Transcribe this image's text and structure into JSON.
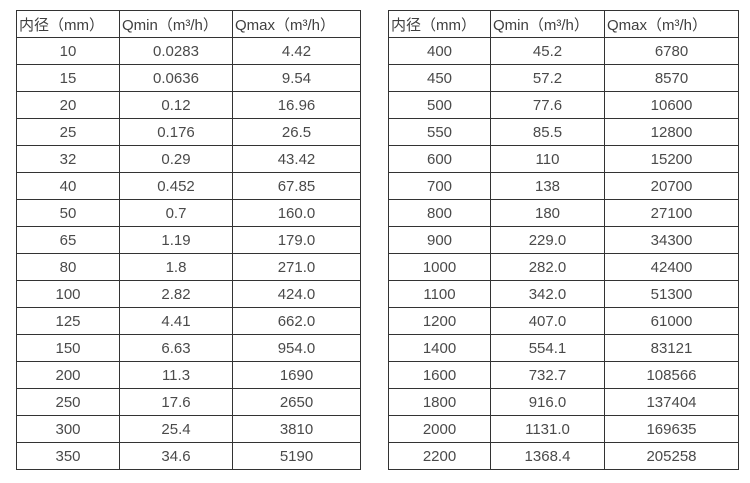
{
  "page": {
    "background": "#ffffff",
    "border_color": "#333333",
    "text_color": "#4a4a4a"
  },
  "tables": [
    {
      "name": "flow-spec-table-small-diameters",
      "headers": [
        "内径（mm）",
        "Qmin（m³/h）",
        "Qmax（m³/h）"
      ],
      "rows": [
        [
          "10",
          "0.0283",
          "4.42"
        ],
        [
          "15",
          "0.0636",
          "9.54"
        ],
        [
          "20",
          "0.12",
          "16.96"
        ],
        [
          "25",
          "0.176",
          "26.5"
        ],
        [
          "32",
          "0.29",
          "43.42"
        ],
        [
          "40",
          "0.452",
          "67.85"
        ],
        [
          "50",
          "0.7",
          "160.0"
        ],
        [
          "65",
          "1.19",
          "179.0"
        ],
        [
          "80",
          "1.8",
          "271.0"
        ],
        [
          "100",
          "2.82",
          "424.0"
        ],
        [
          "125",
          "4.41",
          "662.0"
        ],
        [
          "150",
          "6.63",
          "954.0"
        ],
        [
          "200",
          "11.3",
          "1690"
        ],
        [
          "250",
          "17.6",
          "2650"
        ],
        [
          "300",
          "25.4",
          "3810"
        ],
        [
          "350",
          "34.6",
          "5190"
        ]
      ]
    },
    {
      "name": "flow-spec-table-large-diameters",
      "headers": [
        "内径（mm）",
        "Qmin（m³/h）",
        "Qmax（m³/h）"
      ],
      "rows": [
        [
          "400",
          "45.2",
          "6780"
        ],
        [
          "450",
          "57.2",
          "8570"
        ],
        [
          "500",
          "77.6",
          "10600"
        ],
        [
          "550",
          "85.5",
          "12800"
        ],
        [
          "600",
          "110",
          "15200"
        ],
        [
          "700",
          "138",
          "20700"
        ],
        [
          "800",
          "180",
          "27100"
        ],
        [
          "900",
          "229.0",
          "34300"
        ],
        [
          "1000",
          "282.0",
          "42400"
        ],
        [
          "1100",
          "342.0",
          "51300"
        ],
        [
          "1200",
          "407.0",
          "61000"
        ],
        [
          "1400",
          "554.1",
          "83121"
        ],
        [
          "1600",
          "732.7",
          "108566"
        ],
        [
          "1800",
          "916.0",
          "137404"
        ],
        [
          "2000",
          "1131.0",
          "169635"
        ],
        [
          "2200",
          "1368.4",
          "205258"
        ]
      ]
    }
  ]
}
